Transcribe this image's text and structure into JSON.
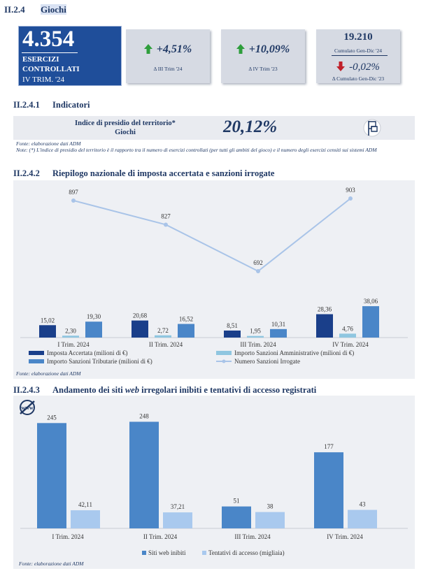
{
  "header": {
    "section_number": "II.2.4",
    "section_title": "Giochi"
  },
  "kpis": {
    "main": {
      "value": "4.354",
      "label_line1": "ESERCIZI",
      "label_line2": "CONTROLLATI",
      "period": "IV TRIM. '24"
    },
    "k1": {
      "value": "+4,51%",
      "caption": "Δ III Trim '24"
    },
    "k2": {
      "value": "+10,09%",
      "caption": "Δ IV Trim '23"
    },
    "k3": {
      "value": "19.210",
      "caption": "Cumulato Gen-Dic '24",
      "delta": "-0,02%",
      "delta_caption": "Δ Cumulato Gen-Dic '23"
    }
  },
  "colors": {
    "navy": "#1f3864",
    "mid_blue": "#1f4e9a",
    "bar_dark": "#1a3f8a",
    "bar_light": "#8fc6e0",
    "bar_mid": "#4a86c8",
    "line": "#a9c4e8",
    "up": "#2e9e3c",
    "down": "#c0202a"
  },
  "section1": {
    "number": "II.2.4.1",
    "title": "Indicatori",
    "label_line1": "Indice di presidio del territorio*",
    "label_line2": "Giochi",
    "value": "20,12%",
    "icon": "flag-icon",
    "source": "Fonte: elaborazione dati ADM",
    "note": "Note: (*) L'indice di presidio del territorio è il rapporto tra il numero di esercizi controllati (per tutti gli ambiti del gioco) e il numero degli esercizi censiti sui sistemi ADM"
  },
  "section2": {
    "number": "II.2.4.2",
    "title": "Riepilogo nazionale di imposta accertata e sanzioni irrogate",
    "source": "Fonte: elaborazione dati ADM"
  },
  "section3": {
    "number": "II.2.4.3",
    "title_pre": "Andamento dei siti",
    "title_em": "web",
    "title_post": "irregolari inibiti e tentativi di accesso registrati",
    "logo": "web-logo-icon",
    "source": "Fonte: elaborazione dati ADM"
  },
  "chart_data": [
    {
      "type": "bar",
      "categories": [
        "I Trim. 2024",
        "II Trim. 2024",
        "III Trim. 2024",
        "IV Trim. 2024"
      ],
      "series": [
        {
          "name": "Imposta Accertata (milioni di €)",
          "type": "bar",
          "values": [
            15.02,
            20.68,
            8.51,
            28.36
          ],
          "labels": [
            "15,02",
            "20,68",
            "8,51",
            "28,36"
          ]
        },
        {
          "name": "Importo Sanzioni Amministrative (milioni di €)",
          "type": "bar",
          "values": [
            2.3,
            2.72,
            1.95,
            4.76
          ],
          "labels": [
            "2,30",
            "2,72",
            "1,95",
            "4,76"
          ]
        },
        {
          "name": "Importo Sanzioni Tributarie (milioni di €)",
          "type": "bar",
          "values": [
            19.3,
            16.52,
            10.31,
            38.06
          ],
          "labels": [
            "19,30",
            "16,52",
            "10,31",
            "38,06"
          ]
        },
        {
          "name": "Numero Sanzioni Irrogate",
          "type": "line",
          "values": [
            897,
            827,
            692,
            903
          ],
          "labels": [
            "897",
            "827",
            "692",
            "903"
          ]
        }
      ],
      "legend": "bottom"
    },
    {
      "type": "bar",
      "categories": [
        "I Trim. 2024",
        "II Trim. 2024",
        "III Trim. 2024",
        "IV Trim. 2024"
      ],
      "series": [
        {
          "name": "Siti web inibiti",
          "values": [
            245,
            248,
            51,
            177
          ],
          "labels": [
            "245",
            "248",
            "51",
            "177"
          ]
        },
        {
          "name": "Tentativi di accesso (migliaia)",
          "values": [
            42.11,
            37.21,
            38,
            43
          ],
          "labels": [
            "42,11",
            "37,21",
            "38",
            "43"
          ]
        }
      ],
      "legend": "bottom"
    }
  ]
}
